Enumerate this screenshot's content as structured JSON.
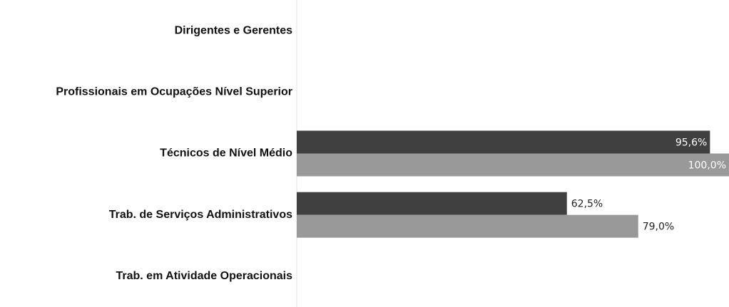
{
  "chart_data": {
    "type": "bar",
    "orientation": "horizontal",
    "categories": [
      "Dirigentes e Gerentes",
      "Profissionais em Ocupações Nível Superior",
      "Técnicos de Nível Médio",
      "Trab. de Serviços Administrativos",
      "Trab. em Atividade Operacionais"
    ],
    "series": [
      {
        "color": "#404040",
        "values": [
          null,
          null,
          95.6,
          62.5,
          null
        ],
        "value_labels": [
          null,
          null,
          "95,6%",
          "62,5%",
          null
        ]
      },
      {
        "color": "#999999",
        "values": [
          null,
          null,
          100.0,
          79.0,
          null
        ],
        "value_labels": [
          null,
          null,
          "100,0%",
          "79,0%",
          null
        ]
      }
    ],
    "xlim": [
      0,
      100
    ]
  }
}
